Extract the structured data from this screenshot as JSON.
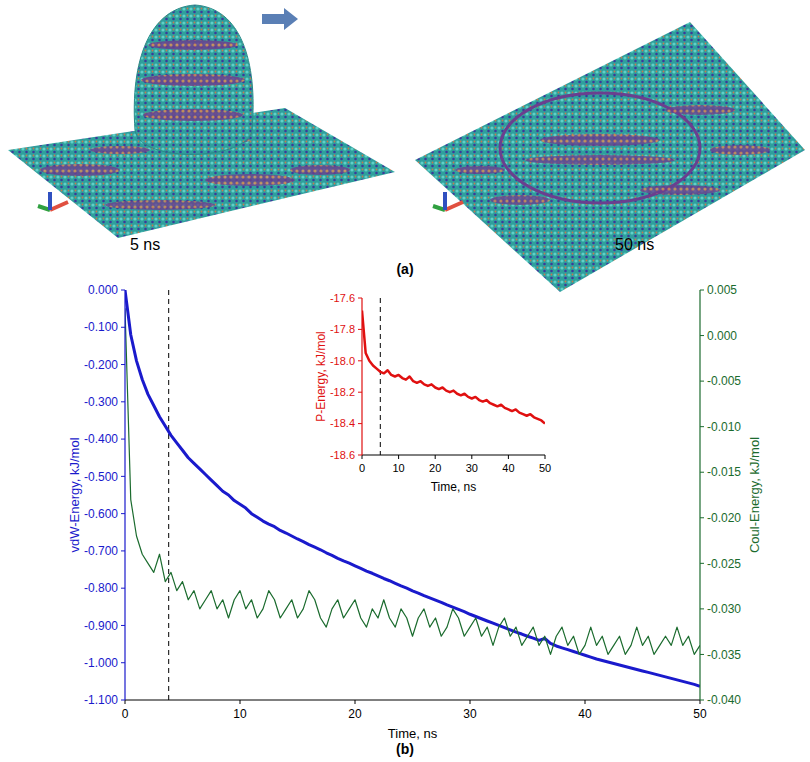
{
  "figure": {
    "panel_labels": [
      "(a)",
      "(b)"
    ],
    "snapshot_labels": [
      "5 ns",
      "50 ns"
    ]
  },
  "chart_data": [
    {
      "type": "line",
      "x_label": "Time, ns",
      "y_label": "vdW-Energy, kJ/mol",
      "y2_label": "Coul-Energy, kJ/mol",
      "xlim": [
        0,
        50
      ],
      "xticks": [
        0,
        10,
        20,
        30,
        40,
        50
      ],
      "ylim": [
        -1.1,
        0
      ],
      "yticks": [
        {
          "value": 0,
          "label": "0.000"
        },
        {
          "value": -0.1,
          "label": "-0.100"
        },
        {
          "value": -0.2,
          "label": "-0.200"
        },
        {
          "value": -0.3,
          "label": "-0.300"
        },
        {
          "value": -0.4,
          "label": "-0.400"
        },
        {
          "value": -0.5,
          "label": "-0.500"
        },
        {
          "value": -0.6,
          "label": "-0.600"
        },
        {
          "value": -0.7,
          "label": "-0.700"
        },
        {
          "value": -0.8,
          "label": "-0.800"
        },
        {
          "value": -0.9,
          "label": "-0.900"
        },
        {
          "value": -1.0,
          "label": "-1.000"
        },
        {
          "value": -1.1,
          "label": "-1.100"
        }
      ],
      "y2lim": [
        -0.04,
        0.005
      ],
      "y2ticks": [
        0.005,
        {
          "value": 0,
          "label": "0.000"
        },
        -0.005,
        {
          "value": -0.01,
          "label": "-0.010"
        },
        -0.015,
        {
          "value": -0.02,
          "label": "-0.020"
        },
        -0.025,
        {
          "value": -0.03,
          "label": "-0.030"
        },
        -0.035,
        {
          "value": -0.04,
          "label": "-0.040"
        }
      ],
      "reference_x": [
        3.8
      ],
      "x": [
        0,
        0.5,
        1,
        1.5,
        2,
        2.5,
        3,
        3.5,
        4,
        4.5,
        5,
        5.5,
        6,
        6.5,
        7,
        7.5,
        8,
        8.5,
        9,
        9.5,
        10,
        10.5,
        11,
        11.5,
        12,
        12.5,
        13,
        13.5,
        14,
        14.5,
        15,
        15.5,
        16,
        16.5,
        17,
        17.5,
        18,
        18.5,
        19,
        19.5,
        20,
        20.5,
        21,
        21.5,
        22,
        22.5,
        23,
        23.5,
        24,
        24.5,
        25,
        25.5,
        26,
        26.5,
        27,
        27.5,
        28,
        28.5,
        29,
        29.5,
        30,
        30.5,
        31,
        31.5,
        32,
        32.5,
        33,
        33.5,
        34,
        34.5,
        35,
        35.5,
        36,
        36.5,
        37,
        37.5,
        38,
        38.5,
        39,
        39.5,
        40,
        40.5,
        41,
        41.5,
        42,
        42.5,
        43,
        43.5,
        44,
        44.5,
        45,
        45.5,
        46,
        46.5,
        47,
        47.5,
        48,
        48.5,
        49,
        49.5,
        50
      ],
      "series": [
        {
          "color": "#1a1acc",
          "values": [
            0,
            -0.12,
            -0.19,
            -0.24,
            -0.28,
            -0.31,
            -0.34,
            -0.365,
            -0.39,
            -0.41,
            -0.43,
            -0.45,
            -0.465,
            -0.48,
            -0.495,
            -0.51,
            -0.525,
            -0.54,
            -0.55,
            -0.565,
            -0.575,
            -0.585,
            -0.6,
            -0.61,
            -0.62,
            -0.628,
            -0.635,
            -0.645,
            -0.652,
            -0.66,
            -0.668,
            -0.675,
            -0.683,
            -0.69,
            -0.697,
            -0.705,
            -0.712,
            -0.72,
            -0.727,
            -0.733,
            -0.74,
            -0.747,
            -0.754,
            -0.76,
            -0.767,
            -0.774,
            -0.78,
            -0.787,
            -0.794,
            -0.8,
            -0.807,
            -0.813,
            -0.82,
            -0.826,
            -0.832,
            -0.838,
            -0.845,
            -0.851,
            -0.857,
            -0.863,
            -0.87,
            -0.876,
            -0.882,
            -0.888,
            -0.894,
            -0.9,
            -0.906,
            -0.912,
            -0.918,
            -0.923,
            -0.929,
            -0.934,
            -0.94,
            -0.935,
            -0.948,
            -0.955,
            -0.96,
            -0.965,
            -0.97,
            -0.975,
            -0.98,
            -0.985,
            -0.99,
            -0.994,
            -0.998,
            -1.002,
            -1.006,
            -1.01,
            -1.014,
            -1.018,
            -1.022,
            -1.026,
            -1.03,
            -1.034,
            -1.038,
            -1.042,
            -1.046,
            -1.05,
            -1.054,
            -1.058,
            -1.063
          ]
        },
        {
          "color": "#1b6b2e",
          "axis": "y2",
          "values": [
            0.003,
            -0.018,
            -0.022,
            -0.024,
            -0.025,
            -0.026,
            -0.024,
            -0.027,
            -0.026,
            -0.028,
            -0.027,
            -0.029,
            -0.028,
            -0.03,
            -0.029,
            -0.028,
            -0.03,
            -0.029,
            -0.031,
            -0.029,
            -0.028,
            -0.03,
            -0.029,
            -0.031,
            -0.03,
            -0.028,
            -0.029,
            -0.031,
            -0.03,
            -0.029,
            -0.031,
            -0.03,
            -0.028,
            -0.029,
            -0.031,
            -0.032,
            -0.03,
            -0.029,
            -0.031,
            -0.03,
            -0.029,
            -0.031,
            -0.032,
            -0.03,
            -0.031,
            -0.029,
            -0.031,
            -0.032,
            -0.03,
            -0.031,
            -0.033,
            -0.031,
            -0.03,
            -0.032,
            -0.031,
            -0.033,
            -0.032,
            -0.03,
            -0.031,
            -0.033,
            -0.032,
            -0.031,
            -0.033,
            -0.032,
            -0.034,
            -0.032,
            -0.031,
            -0.033,
            -0.032,
            -0.034,
            -0.033,
            -0.032,
            -0.034,
            -0.033,
            -0.035,
            -0.033,
            -0.032,
            -0.034,
            -0.033,
            -0.035,
            -0.034,
            -0.032,
            -0.034,
            -0.033,
            -0.035,
            -0.034,
            -0.033,
            -0.035,
            -0.034,
            -0.032,
            -0.034,
            -0.033,
            -0.035,
            -0.034,
            -0.033,
            -0.034,
            -0.032,
            -0.034,
            -0.033,
            -0.035,
            -0.034
          ]
        }
      ]
    },
    {
      "type": "line",
      "x_label": "Time, ns",
      "y_label": "P-Energy, kJ/mol",
      "xlim": [
        0,
        50
      ],
      "xticks": [
        0,
        10,
        20,
        30,
        40,
        50
      ],
      "ylim": [
        -18.6,
        -17.6
      ],
      "yticks": [
        -17.6,
        -17.8,
        {
          "value": -18.0,
          "label": "-18.0"
        },
        -18.2,
        -18.4,
        -18.6
      ],
      "reference_x": [
        5
      ],
      "x": [
        0,
        1,
        2,
        3,
        4,
        5,
        6,
        7,
        8,
        9,
        10,
        11,
        12,
        13,
        14,
        15,
        16,
        17,
        18,
        19,
        20,
        21,
        22,
        23,
        24,
        25,
        26,
        27,
        28,
        29,
        30,
        31,
        32,
        33,
        34,
        35,
        36,
        37,
        38,
        39,
        40,
        41,
        42,
        43,
        44,
        45,
        46,
        47,
        48,
        49,
        50
      ],
      "series": [
        {
          "color": "#e01010",
          "values": [
            -17.68,
            -17.95,
            -18.0,
            -18.03,
            -18.05,
            -18.07,
            -18.08,
            -18.06,
            -18.09,
            -18.1,
            -18.09,
            -18.11,
            -18.12,
            -18.1,
            -18.13,
            -18.14,
            -18.13,
            -18.15,
            -18.16,
            -18.15,
            -18.17,
            -18.18,
            -18.17,
            -18.19,
            -18.2,
            -18.19,
            -18.21,
            -18.22,
            -18.21,
            -18.23,
            -18.24,
            -18.23,
            -18.25,
            -18.26,
            -18.25,
            -18.27,
            -18.28,
            -18.29,
            -18.28,
            -18.3,
            -18.31,
            -18.32,
            -18.31,
            -18.33,
            -18.34,
            -18.35,
            -18.34,
            -18.36,
            -18.37,
            -18.38,
            -18.4
          ]
        }
      ]
    }
  ]
}
